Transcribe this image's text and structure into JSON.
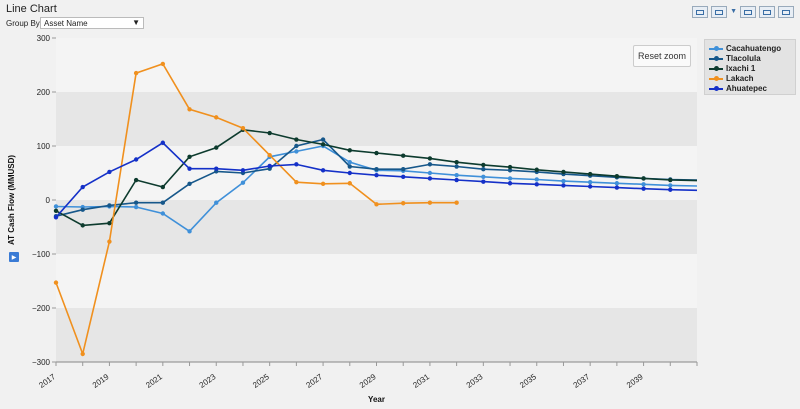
{
  "header": {
    "title": "Line Chart"
  },
  "group_by": {
    "label": "Group By",
    "value": "Asset Name"
  },
  "reset_zoom_label": "Reset zoom",
  "toolbar": {
    "icons": [
      "chart-type-icon",
      "export-icon",
      "expand-icon",
      "popout-icon",
      "fullscreen-icon"
    ]
  },
  "chart_data": {
    "type": "line",
    "xlabel": "Year",
    "ylabel": "AT Cash Flow (MMUSD)",
    "ylim": [
      -300,
      300
    ],
    "xlim": [
      2017,
      2041
    ],
    "yticks": [
      300,
      200,
      100,
      0,
      -100,
      -200,
      -300
    ],
    "ytick_labels": [
      "300",
      "200",
      "100",
      "0",
      "−100",
      "−200",
      "−300"
    ],
    "xticks": [
      2017,
      2019,
      2021,
      2023,
      2025,
      2027,
      2029,
      2031,
      2033,
      2035,
      2037,
      2039
    ],
    "grid": true,
    "legend_position": "top-right",
    "series": [
      {
        "name": "Cacahuatengo",
        "color": "#3f90d9",
        "x": [
          2017,
          2018,
          2019,
          2020,
          2021,
          2022,
          2023,
          2024,
          2025,
          2026,
          2027,
          2028,
          2029,
          2030,
          2031,
          2032,
          2033,
          2034,
          2035,
          2036,
          2037,
          2038,
          2039,
          2040,
          2041
        ],
        "y": [
          -12,
          -13,
          -12,
          -13,
          -25,
          -58,
          -5,
          32,
          80,
          90,
          100,
          70,
          55,
          54,
          50,
          46,
          43,
          40,
          38,
          35,
          33,
          31,
          29,
          27,
          26
        ]
      },
      {
        "name": "Tlacolula",
        "color": "#16578a",
        "x": [
          2017,
          2018,
          2019,
          2020,
          2021,
          2022,
          2023,
          2024,
          2025,
          2026,
          2027,
          2028,
          2029,
          2030,
          2031,
          2032,
          2033,
          2034,
          2035,
          2036,
          2037,
          2038,
          2039,
          2040,
          2041
        ],
        "y": [
          -30,
          -18,
          -10,
          -5,
          -5,
          30,
          53,
          50,
          58,
          100,
          112,
          62,
          57,
          57,
          66,
          62,
          57,
          55,
          52,
          48,
          45,
          42,
          40,
          38,
          37
        ]
      },
      {
        "name": "Ixachi 1",
        "color": "#0d3b2e",
        "x": [
          2017,
          2018,
          2019,
          2020,
          2021,
          2022,
          2023,
          2024,
          2025,
          2026,
          2027,
          2028,
          2029,
          2030,
          2031,
          2032,
          2033,
          2034,
          2035,
          2036,
          2037,
          2038,
          2039,
          2040,
          2041
        ],
        "y": [
          -20,
          -47,
          -43,
          37,
          24,
          80,
          97,
          130,
          124,
          112,
          103,
          92,
          87,
          82,
          77,
          70,
          65,
          61,
          56,
          52,
          48,
          44,
          40,
          37,
          36
        ]
      },
      {
        "name": "Lakach",
        "color": "#f0901e",
        "x": [
          2017,
          2018,
          2019,
          2020,
          2021,
          2022,
          2023,
          2024,
          2025,
          2026,
          2027,
          2028,
          2029,
          2030,
          2031,
          2032
        ],
        "y": [
          -153,
          -285,
          -77,
          235,
          252,
          168,
          153,
          133,
          83,
          33,
          30,
          31,
          -8,
          -6,
          -5,
          -5
        ]
      },
      {
        "name": "Ahuatepec",
        "color": "#1430c8",
        "x": [
          2017,
          2018,
          2019,
          2020,
          2021,
          2022,
          2023,
          2024,
          2025,
          2026,
          2027,
          2028,
          2029,
          2030,
          2031,
          2032,
          2033,
          2034,
          2035,
          2036,
          2037,
          2038,
          2039,
          2040,
          2041
        ],
        "y": [
          -32,
          24,
          52,
          75,
          106,
          58,
          58,
          55,
          63,
          66,
          55,
          50,
          46,
          43,
          40,
          37,
          34,
          31,
          29,
          27,
          25,
          23,
          21,
          19,
          18
        ]
      }
    ]
  }
}
